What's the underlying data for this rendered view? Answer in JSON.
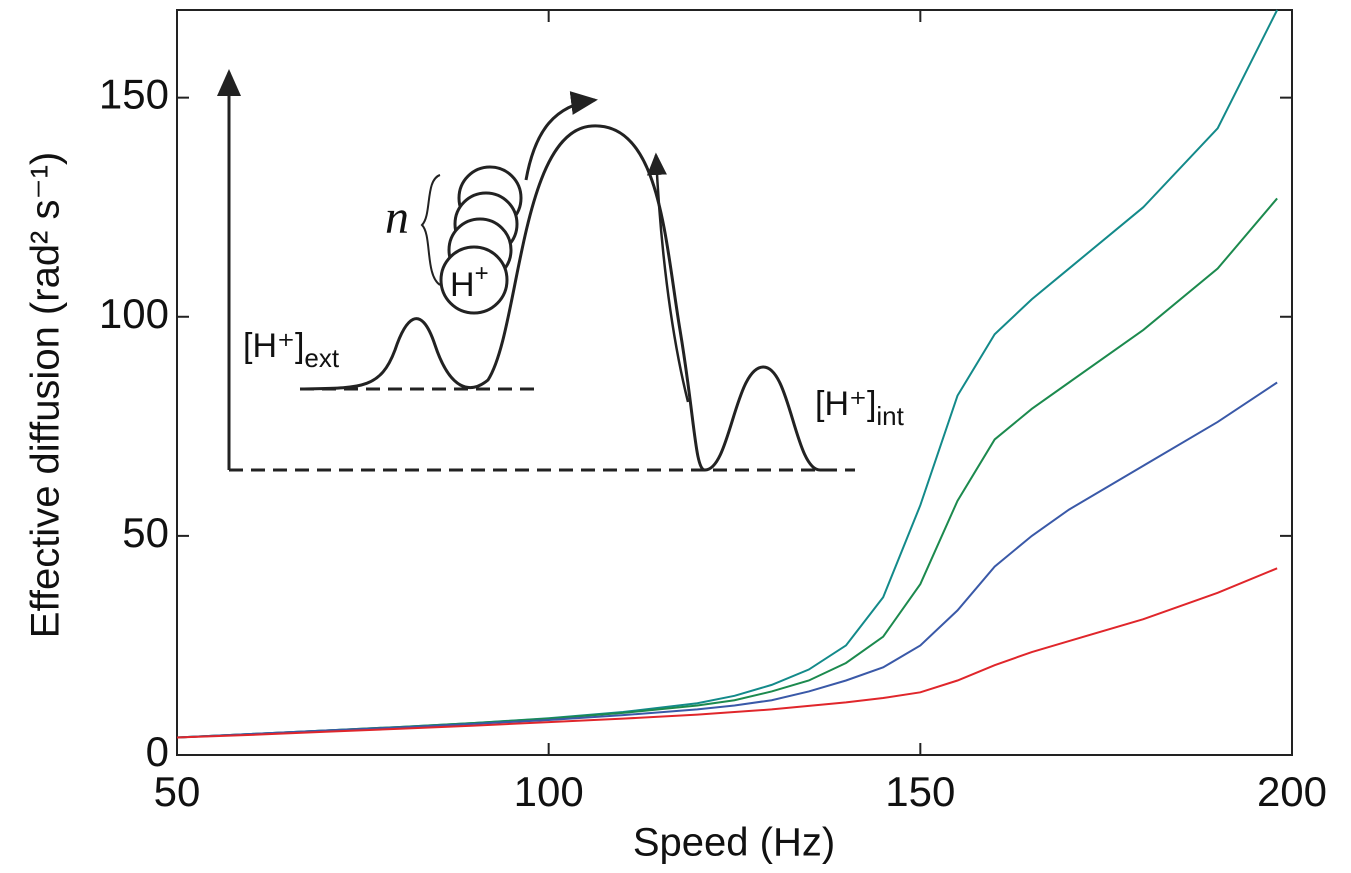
{
  "chart_data": {
    "type": "line",
    "x_label": "Speed (Hz)",
    "y_label": "Effective diffusion (rad² s⁻¹)",
    "x": [
      50,
      60,
      70,
      80,
      90,
      100,
      110,
      120,
      125,
      130,
      135,
      140,
      145,
      150,
      155,
      160,
      165,
      170,
      180,
      190,
      198
    ],
    "series": [
      {
        "color": "#138a8a",
        "values": [
          4,
          4.8,
          5.6,
          6.4,
          7.3,
          8.4,
          9.8,
          11.8,
          13.5,
          16,
          19.5,
          25,
          36,
          57,
          82,
          96,
          104,
          111,
          125,
          143,
          170
        ]
      },
      {
        "color": "#1c8a4e",
        "values": [
          4,
          4.8,
          5.6,
          6.4,
          7.3,
          8.3,
          9.6,
          11.3,
          12.5,
          14.5,
          17,
          21,
          27,
          39,
          58,
          72,
          79,
          85,
          97,
          111,
          127
        ]
      },
      {
        "color": "#3a59a8",
        "values": [
          4,
          4.8,
          5.6,
          6.3,
          7.1,
          8,
          9.1,
          10.4,
          11.3,
          12.5,
          14.5,
          17,
          20,
          25,
          33,
          43,
          50,
          56,
          66,
          76,
          85
        ]
      },
      {
        "color": "#e0262b",
        "values": [
          4,
          4.6,
          5.3,
          6,
          6.7,
          7.5,
          8.3,
          9.2,
          9.8,
          10.4,
          11.2,
          12,
          13,
          14.3,
          17,
          20.5,
          23.5,
          26,
          31,
          37,
          42.6
        ]
      }
    ],
    "xlim": [
      50,
      200
    ],
    "xticks": [
      50,
      100,
      150,
      200
    ],
    "ylim": [
      0,
      170
    ],
    "yticks": [
      0,
      50,
      100,
      150
    ],
    "inset": {
      "external": {
        "text": "[H⁺]",
        "subscript": "ext"
      },
      "internal": {
        "text": "[H⁺]",
        "subscript": "int"
      },
      "count_symbol": "n",
      "ion": {
        "text": "H",
        "superscript": "+"
      }
    }
  }
}
